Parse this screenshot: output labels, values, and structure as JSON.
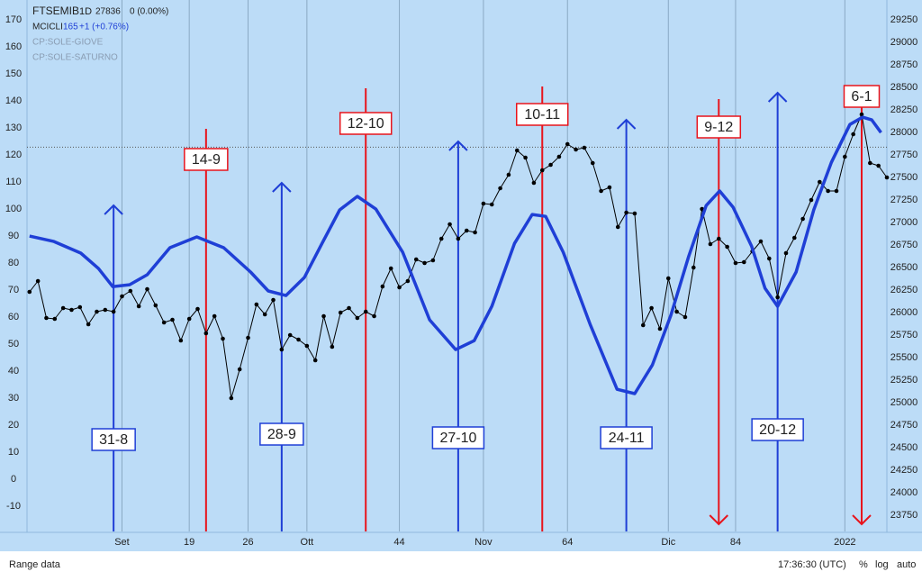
{
  "chart_data": {
    "type": "line",
    "series": [
      {
        "name": "FTSEMIB",
        "color": "#000000",
        "axis": "y2",
        "markers": true,
        "values": [
          26230,
          26350,
          25940,
          25930,
          26050,
          26030,
          26060,
          25870,
          26010,
          26030,
          26010,
          26180,
          26240,
          26070,
          26260,
          26080,
          25890,
          25920,
          25690,
          25930,
          26040,
          25770,
          25960,
          25710,
          25050,
          25370,
          25720,
          26090,
          25980,
          26140,
          25590,
          25750,
          25700,
          25630,
          25470,
          25960,
          25620,
          26000,
          26050,
          25940,
          26010,
          25960,
          26290,
          26490,
          26280,
          26350,
          26590,
          26550,
          26580,
          26820,
          26980,
          26820,
          26910,
          26890,
          27210,
          27200,
          27380,
          27530,
          27800,
          27720,
          27440,
          27580,
          27640,
          27730,
          27870,
          27810,
          27830,
          27660,
          27350,
          27390,
          26950,
          27110,
          27100,
          25860,
          26050,
          25820,
          26380,
          26010,
          25950,
          26500,
          27150,
          26760,
          26820,
          26730,
          26550,
          26560,
          26680,
          26790,
          26600,
          26170,
          26660,
          26830,
          27040,
          27250,
          27450,
          27350,
          27350,
          27730,
          27980,
          28200,
          27660,
          27630,
          27500
        ]
      },
      {
        "name": "MCICLI",
        "color": "#1f3fd6",
        "axis": "y",
        "markers": false,
        "x": [
          0,
          2.9,
          6.1,
          8.2,
          9.9,
          11.9,
          14,
          16.7,
          19.9,
          23.1,
          26.3,
          28.4,
          30.5,
          32.7,
          34.8,
          36.9,
          39,
          41.2,
          44.4,
          47.6,
          50.7,
          52.9,
          55,
          57.7,
          59.8,
          61.4,
          63.5,
          66.7,
          69.9,
          72,
          74.1,
          76.3,
          78.4,
          80.5,
          82.1,
          83.7,
          85.9,
          87.5,
          89,
          91.2,
          93.3,
          95.4,
          97.6,
          99.1,
          100.2,
          101.3
        ],
        "values": [
          90,
          88,
          83.7,
          78,
          71.3,
          72,
          75.7,
          85.7,
          89.7,
          85.7,
          76.7,
          69.7,
          68,
          74.7,
          87.3,
          99.7,
          104.7,
          100,
          84,
          59,
          48,
          51.3,
          64,
          87.3,
          98,
          97.3,
          84,
          57.3,
          33.3,
          31.7,
          42.3,
          60.7,
          82.3,
          101.3,
          106.7,
          100.7,
          86.3,
          70.7,
          64,
          76.7,
          99.7,
          117.3,
          131.3,
          134,
          133,
          128.3
        ]
      }
    ],
    "legend_details": [
      [
        "1D",
        "27836",
        "0 (0.00%)"
      ],
      [
        "165",
        "+1 (+0.76%)"
      ]
    ],
    "hidden_indicators": [
      "CP:SOLE-GIOVE",
      "CP:SOLE-SATURNO"
    ],
    "price_line": 27836,
    "xlim": [
      -0.3,
      102
    ],
    "xticks": [
      {
        "value": 11,
        "label": "Set"
      },
      19,
      26,
      {
        "value": 33,
        "label": "Ott"
      },
      44,
      {
        "value": 54,
        "label": "Nov"
      },
      64,
      {
        "value": 76,
        "label": "Dic"
      },
      84,
      2022
    ],
    "xtick_positions": [
      11,
      19,
      26,
      33,
      44,
      54,
      64,
      76,
      84,
      97
    ],
    "ylim": [
      -19.3,
      175.7
    ],
    "yticks": [
      -10,
      0,
      10,
      20,
      30,
      40,
      50,
      60,
      70,
      80,
      90,
      100,
      110,
      120,
      130,
      140,
      150,
      160,
      170
    ],
    "y2lim": [
      23570,
      29420
    ],
    "y2ticks": [
      23750,
      24000,
      24250,
      24500,
      24750,
      25000,
      25250,
      25500,
      25750,
      26000,
      26250,
      26500,
      26750,
      27000,
      27250,
      27500,
      27750,
      28000,
      28250,
      28500,
      28750,
      29000,
      29250
    ],
    "grid": "vertical",
    "annotations": [
      {
        "label": "31-8",
        "x": 10,
        "color": "#1f3fd6",
        "direction": "up"
      },
      {
        "label": "14-9",
        "x": 21,
        "color": "#e8141c",
        "direction": "none"
      },
      {
        "label": "28-9",
        "x": 30,
        "color": "#1f3fd6",
        "direction": "up"
      },
      {
        "label": "12-10",
        "x": 40,
        "color": "#e8141c",
        "direction": "none"
      },
      {
        "label": "27-10",
        "x": 51,
        "color": "#1f3fd6",
        "direction": "up"
      },
      {
        "label": "10-11",
        "x": 61,
        "color": "#e8141c",
        "direction": "none"
      },
      {
        "label": "24-11",
        "x": 71,
        "color": "#1f3fd6",
        "direction": "up"
      },
      {
        "label": "9-12",
        "x": 82,
        "color": "#e8141c",
        "direction": "down"
      },
      {
        "label": "20-12",
        "x": 89,
        "color": "#1f3fd6",
        "direction": "up"
      },
      {
        "label": "6-1",
        "x": 99,
        "color": "#e8141c",
        "direction": "down"
      }
    ]
  },
  "footer": {
    "range": "Range data",
    "time": "17:36:30 (UTC)",
    "buttons": [
      "%",
      "log",
      "auto"
    ]
  }
}
